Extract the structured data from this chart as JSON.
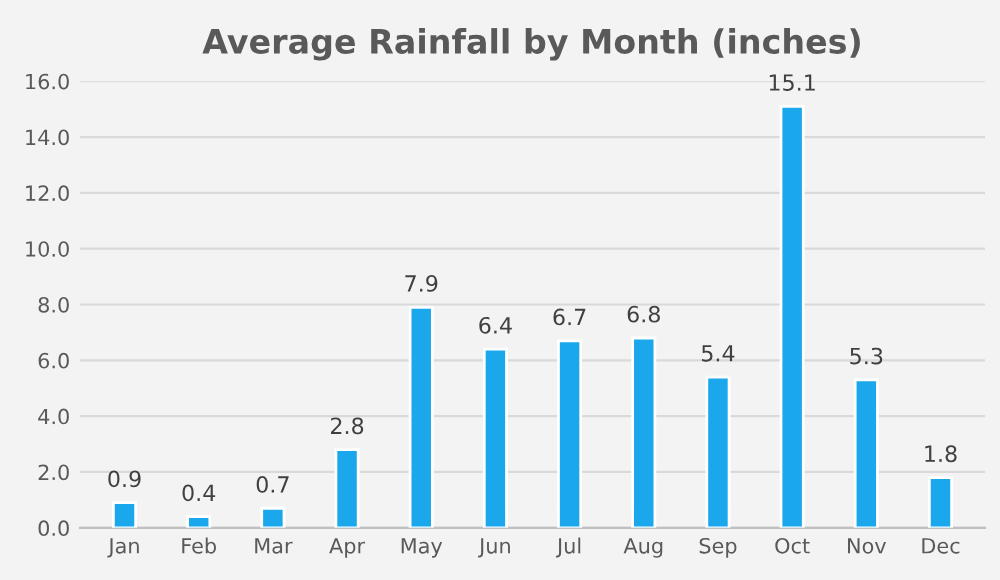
{
  "chart_data": {
    "type": "bar",
    "title": "Average Rainfall by Month (inches)",
    "categories": [
      "Jan",
      "Feb",
      "Mar",
      "Apr",
      "May",
      "Jun",
      "Jul",
      "Aug",
      "Sep",
      "Oct",
      "Nov",
      "Dec"
    ],
    "values": [
      0.9,
      0.4,
      0.7,
      2.8,
      7.9,
      6.4,
      6.7,
      6.8,
      5.4,
      15.1,
      5.3,
      1.8
    ],
    "color": "#1aa7ec",
    "data_labels": true,
    "grid": "y",
    "ylim": [
      0,
      16
    ],
    "yticks": [
      {
        "value": 0,
        "label": "0.0"
      },
      {
        "value": 2,
        "label": "2.0"
      },
      {
        "value": 4,
        "label": "4.0"
      },
      {
        "value": 6,
        "label": "6.0"
      },
      {
        "value": 8,
        "label": "8.0"
      },
      {
        "value": 10,
        "label": "10.0"
      },
      {
        "value": 12,
        "label": "12.0"
      },
      {
        "value": 14,
        "label": "14.0"
      },
      {
        "value": 16,
        "label": "16.0"
      }
    ]
  }
}
